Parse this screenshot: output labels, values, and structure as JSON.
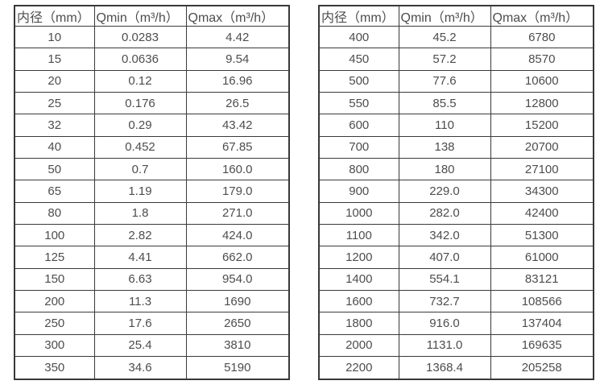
{
  "page": {
    "background": "#ffffff",
    "text_color": "#4d4d4d",
    "border_color": "#383838"
  },
  "tables": [
    {
      "name": "small-diameter-flow-table",
      "headers": [
        "内径（mm）",
        "Qmin（m³/h）",
        "Qmax（m³/h）"
      ],
      "rows": [
        [
          "10",
          "0.0283",
          "4.42"
        ],
        [
          "15",
          "0.0636",
          "9.54"
        ],
        [
          "20",
          "0.12",
          "16.96"
        ],
        [
          "25",
          "0.176",
          "26.5"
        ],
        [
          "32",
          "0.29",
          "43.42"
        ],
        [
          "40",
          "0.452",
          "67.85"
        ],
        [
          "50",
          "0.7",
          "160.0"
        ],
        [
          "65",
          "1.19",
          "179.0"
        ],
        [
          "80",
          "1.8",
          "271.0"
        ],
        [
          "100",
          "2.82",
          "424.0"
        ],
        [
          "125",
          "4.41",
          "662.0"
        ],
        [
          "150",
          "6.63",
          "954.0"
        ],
        [
          "200",
          "11.3",
          "1690"
        ],
        [
          "250",
          "17.6",
          "2650"
        ],
        [
          "300",
          "25.4",
          "3810"
        ],
        [
          "350",
          "34.6",
          "5190"
        ]
      ]
    },
    {
      "name": "large-diameter-flow-table",
      "headers": [
        "内径（mm）",
        "Qmin（m³/h）",
        "Qmax（m³/h）"
      ],
      "rows": [
        [
          "400",
          "45.2",
          "6780"
        ],
        [
          "450",
          "57.2",
          "8570"
        ],
        [
          "500",
          "77.6",
          "10600"
        ],
        [
          "550",
          "85.5",
          "12800"
        ],
        [
          "600",
          "110",
          "15200"
        ],
        [
          "700",
          "138",
          "20700"
        ],
        [
          "800",
          "180",
          "27100"
        ],
        [
          "900",
          "229.0",
          "34300"
        ],
        [
          "1000",
          "282.0",
          "42400"
        ],
        [
          "1100",
          "342.0",
          "51300"
        ],
        [
          "1200",
          "407.0",
          "61000"
        ],
        [
          "1400",
          "554.1",
          "83121"
        ],
        [
          "1600",
          "732.7",
          "108566"
        ],
        [
          "1800",
          "916.0",
          "137404"
        ],
        [
          "2000",
          "1131.0",
          "169635"
        ],
        [
          "2200",
          "1368.4",
          "205258"
        ]
      ]
    }
  ],
  "chart_data": {
    "type": "table",
    "title": "",
    "columns": [
      "内径（mm）",
      "Qmin（m³/h）",
      "Qmax（m³/h）"
    ],
    "tables": [
      {
        "diameters_mm": [
          10,
          15,
          20,
          25,
          32,
          40,
          50,
          65,
          80,
          100,
          125,
          150,
          200,
          250,
          300,
          350
        ],
        "qmin": [
          0.0283,
          0.0636,
          0.12,
          0.176,
          0.29,
          0.452,
          0.7,
          1.19,
          1.8,
          2.82,
          4.41,
          6.63,
          11.3,
          17.6,
          25.4,
          34.6
        ],
        "qmax": [
          4.42,
          9.54,
          16.96,
          26.5,
          43.42,
          67.85,
          160.0,
          179.0,
          271.0,
          424.0,
          662.0,
          954.0,
          1690,
          2650,
          3810,
          5190
        ]
      },
      {
        "diameters_mm": [
          400,
          450,
          500,
          550,
          600,
          700,
          800,
          900,
          1000,
          1100,
          1200,
          1400,
          1600,
          1800,
          2000,
          2200
        ],
        "qmin": [
          45.2,
          57.2,
          77.6,
          85.5,
          110,
          138,
          180,
          229.0,
          282.0,
          342.0,
          407.0,
          554.1,
          732.7,
          916.0,
          1131.0,
          1368.4
        ],
        "qmax": [
          6780,
          8570,
          10600,
          12800,
          15200,
          20700,
          27100,
          34300,
          42400,
          51300,
          61000,
          83121,
          108566,
          137404,
          169635,
          205258
        ]
      }
    ]
  }
}
